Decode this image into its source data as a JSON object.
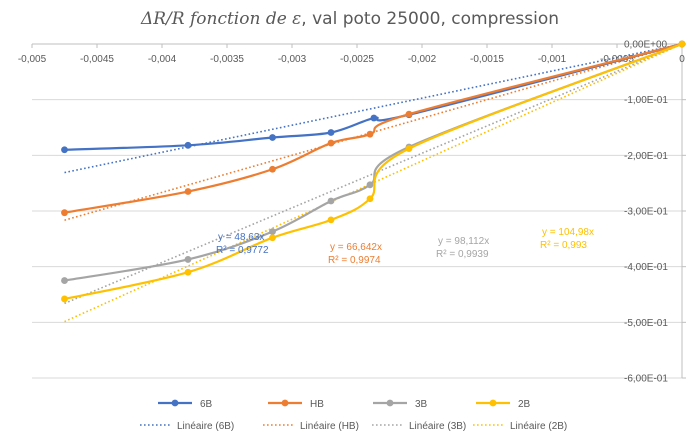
{
  "chart_data": {
    "type": "scatter",
    "title": {
      "segments": [
        {
          "text": "ΔR/R",
          "italic": true
        },
        {
          "text": " ",
          "italic": false
        },
        {
          "text": "fonction de ε",
          "italic": true
        },
        {
          "text": ", val poto 25000, compression",
          "italic": false
        }
      ]
    },
    "xlabel": "",
    "ylabel": "",
    "xlim": [
      -0.005,
      0
    ],
    "ylim": [
      -0.6,
      0
    ],
    "x_ticks": [
      -0.005,
      -0.0045,
      -0.004,
      -0.0035,
      -0.003,
      -0.0025,
      -0.002,
      -0.0015,
      -0.001,
      -0.0005,
      0
    ],
    "x_tick_labels": [
      "-0,005",
      "-0,0045",
      "-0,004",
      "-0,0035",
      "-0,003",
      "-0,0025",
      "-0,002",
      "-0,0015",
      "-0,001",
      "-0,0005",
      "0"
    ],
    "y_ticks": [
      0,
      -0.1,
      -0.2,
      -0.3,
      -0.4,
      -0.5,
      -0.6
    ],
    "y_tick_labels": [
      "0,00E+00",
      "-1,00E-01",
      "-2,00E-01",
      "-3,00E-01",
      "-4,00E-01",
      "-5,00E-01",
      "-6,00E-01"
    ],
    "grid": {
      "x": false,
      "y": true
    },
    "legend_position": "bottom",
    "series": [
      {
        "name": "6B",
        "color": "#4472c4",
        "x": [
          -0.00475,
          -0.0038,
          -0.00315,
          -0.0027,
          -0.00237,
          -0.0021,
          0
        ],
        "y": [
          -0.19,
          -0.182,
          -0.168,
          -0.159,
          -0.133,
          -0.127,
          0
        ],
        "trendline": {
          "name": "Linéaire (6B)",
          "slope": 48.63,
          "equation": "y = 48,63x",
          "r2": "R² = 0,9772"
        }
      },
      {
        "name": "HB",
        "color": "#ed7d31",
        "x": [
          -0.00475,
          -0.0038,
          -0.00315,
          -0.0027,
          -0.0024,
          -0.0021,
          0
        ],
        "y": [
          -0.303,
          -0.265,
          -0.225,
          -0.178,
          -0.162,
          -0.126,
          0
        ],
        "trendline": {
          "name": "Linéaire (HB)",
          "slope": 66.642,
          "equation": "y = 66,642x",
          "r2": "R² = 0,9974"
        }
      },
      {
        "name": "3B",
        "color": "#a5a5a5",
        "x": [
          -0.00475,
          -0.0038,
          -0.00315,
          -0.0027,
          -0.0024,
          -0.0021,
          0
        ],
        "y": [
          -0.425,
          -0.387,
          -0.337,
          -0.282,
          -0.253,
          -0.185,
          0
        ],
        "trendline": {
          "name": "Linéaire (3B)",
          "slope": 98.112,
          "equation": "y = 98,112x",
          "r2": "R² = 0,9939"
        }
      },
      {
        "name": "2B",
        "color": "#ffc000",
        "x": [
          -0.00475,
          -0.0038,
          -0.00315,
          -0.0027,
          -0.0024,
          -0.0021,
          0
        ],
        "y": [
          -0.458,
          -0.41,
          -0.348,
          -0.316,
          -0.278,
          -0.188,
          0
        ],
        "trendline": {
          "name": "Linéaire (2B)",
          "slope": 104.98,
          "equation": "y = 104,98x",
          "r2": "R² = 0,993"
        }
      }
    ]
  }
}
